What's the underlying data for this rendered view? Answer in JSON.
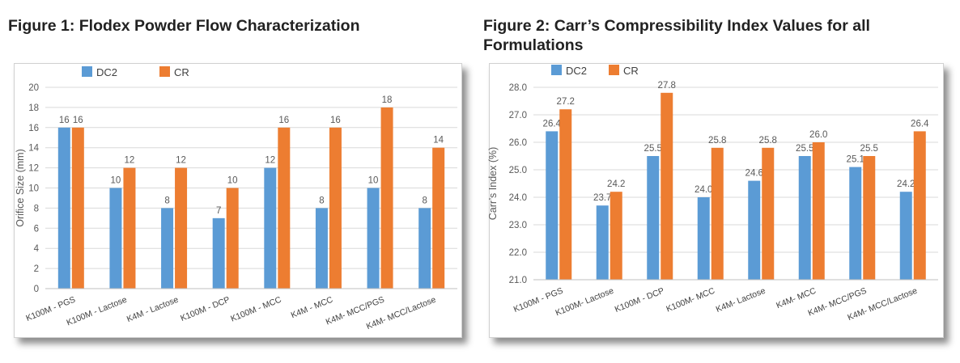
{
  "figures": [
    {
      "title": "Figure 1: Flodex Powder Flow Characterization"
    },
    {
      "title": "Figure 2: Carr’s Compressibility Index Values for all Formulations"
    }
  ],
  "colors": {
    "DC2": "#5b9bd5",
    "CR": "#ed7d31",
    "grid": "#d9d9d9",
    "text": "#595959"
  },
  "chart_data": [
    {
      "type": "bar",
      "title": "",
      "xlabel": "",
      "ylabel": "Orifice Size (mm)",
      "ylim": [
        0,
        20
      ],
      "yticks": [
        "0",
        "2",
        "4",
        "6",
        "8",
        "10",
        "12",
        "14",
        "16",
        "18",
        "20"
      ],
      "grid": true,
      "legend": "top-left",
      "categories": [
        "K100M - PGS",
        "K100M - Lactose",
        "K4M - Lactose",
        "K100M - DCP",
        "K100M - MCC",
        "K4M - MCC",
        "K4M- MCC/PGS",
        "K4M- MCC/Lactose"
      ],
      "series": [
        {
          "name": "DC2",
          "values": [
            16,
            10,
            8,
            7,
            12,
            8,
            10,
            8
          ],
          "labels": [
            "16",
            "10",
            "8",
            "7",
            "12",
            "8",
            "10",
            "8"
          ]
        },
        {
          "name": "CR",
          "values": [
            16,
            12,
            12,
            10,
            16,
            16,
            18,
            14
          ],
          "labels": [
            "16",
            "12",
            "12",
            "10",
            "16",
            "16",
            "18",
            "14"
          ]
        }
      ]
    },
    {
      "type": "bar",
      "title": "",
      "xlabel": "",
      "ylabel": "Carr’s Index (%)",
      "ylim": [
        21.0,
        28.0
      ],
      "yticks": [
        "21.0",
        "22.0",
        "23.0",
        "24.0",
        "25.0",
        "26.0",
        "27.0",
        "28.0"
      ],
      "grid": true,
      "legend": "top-left",
      "categories": [
        "K100M - PGS",
        "K100M- Lactose",
        "K100M - DCP",
        "K100M- MCC",
        "K4M- Lactose",
        "K4M- MCC",
        "K4M- MCC/PGS",
        "K4M- MCC/Lactose"
      ],
      "series": [
        {
          "name": "DC2",
          "values": [
            26.4,
            23.7,
            25.5,
            24.0,
            24.6,
            25.5,
            25.1,
            24.2
          ],
          "labels": [
            "26.4",
            "23.7",
            "25.5",
            "24.0",
            "24.6",
            "25.5",
            "25.1",
            "24.2"
          ]
        },
        {
          "name": "CR",
          "values": [
            27.2,
            24.2,
            27.8,
            25.8,
            25.8,
            26.0,
            25.5,
            26.4
          ],
          "labels": [
            "27.2",
            "24.2",
            "27.8",
            "25.8",
            "25.8",
            "26.0",
            "25.5",
            "26.4"
          ]
        }
      ]
    }
  ]
}
